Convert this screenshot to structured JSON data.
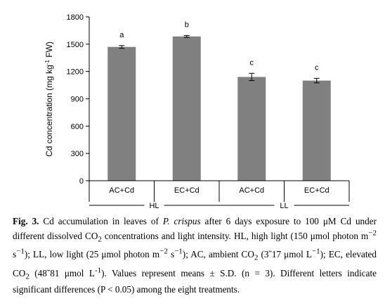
{
  "chart_data": {
    "type": "bar",
    "categories": [
      "AC+Cd",
      "EC+Cd",
      "AC+Cd",
      "EC+Cd"
    ],
    "groups": [
      {
        "label": "HL",
        "categories": [
          0,
          1
        ]
      },
      {
        "label": "LL",
        "categories": [
          2,
          3
        ]
      }
    ],
    "values": [
      1470,
      1585,
      1140,
      1100
    ],
    "errors": [
      15,
      10,
      40,
      25
    ],
    "significance": [
      "a",
      "b",
      "c",
      "c"
    ],
    "ylabel_main": "Cd  concentration (mg kg",
    "ylabel_sup": "-1",
    "ylabel_end": " FW)",
    "ylim": [
      0,
      1800
    ],
    "yticks": [
      0,
      300,
      600,
      900,
      1200,
      1500,
      1800
    ],
    "bar_color": "#808080",
    "grid": false
  },
  "caption": {
    "label": "Fig. 3.",
    "text_html": " Cd accumulation in leaves of <i>P. crispus</i> after 6 days exposure to 100 μM Cd under different dissolved CO<sub>2</sub> concentrations and light intensity. HL, high light (150 μmol photon m<sup>−2</sup> s<sup>−1</sup>); LL, low light (25 μmol photon m<sup>−2</sup> s<sup>−1</sup>); AC, ambient CO<sub>2</sub> (3˜17 μmol L<sup>−1</sup>); EC, elevated CO<sub>2</sub> (48˜81 μmol L<sup>-1</sup>). Values represent means ± S.D. (n = 3). Different letters indicate significant differences (P &lt; 0.05) among the eight treatments."
  }
}
